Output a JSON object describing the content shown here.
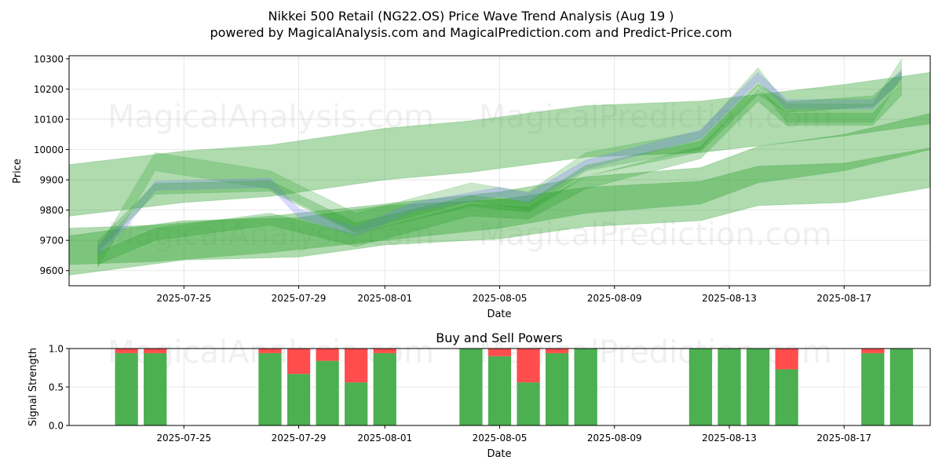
{
  "title_line1": "Nikkei 500 Retail (NG22.OS) Price Wave Trend Analysis (Aug 19 )",
  "title_line2": "powered by MagicalAnalysis.com and MagicalPrediction.com and Predict-Price.com",
  "watermarks": {
    "left": "MagicalAnalysis.com",
    "right": "MagicalPrediction.com"
  },
  "colors": {
    "band_green": "#2ca02c",
    "band_blue": "#7b7bff",
    "buy_green": "#4caf50",
    "sell_red": "#ff4d4d"
  },
  "chart_data": [
    {
      "type": "area",
      "xlabel": "Date",
      "ylabel": "Price",
      "x_range": [
        "2025-07-21",
        "2025-08-20"
      ],
      "ylim": [
        9550,
        10310
      ],
      "yticks": [
        9600,
        9700,
        9800,
        9900,
        10000,
        10100,
        10200,
        10300
      ],
      "xticks": [
        "2025-07-25",
        "2025-07-29",
        "2025-08-01",
        "2025-08-05",
        "2025-08-09",
        "2025-08-13",
        "2025-08-17"
      ],
      "grid": true,
      "series": [
        {
          "color": "green",
          "alpha": 0.38,
          "width": 170,
          "points": [
            [
              "2025-07-21",
              9865
            ],
            [
              "2025-07-25",
              9910
            ],
            [
              "2025-07-28",
              9930
            ],
            [
              "2025-08-01",
              9985
            ],
            [
              "2025-08-04",
              10010
            ],
            [
              "2025-08-08",
              10060
            ],
            [
              "2025-08-12",
              10075
            ],
            [
              "2025-08-17",
              10130
            ],
            [
              "2025-08-20",
              10170
            ]
          ]
        },
        {
          "color": "green",
          "alpha": 0.38,
          "width": 130,
          "points": [
            [
              "2025-07-21",
              9650
            ],
            [
              "2025-07-25",
              9700
            ],
            [
              "2025-07-29",
              9710
            ],
            [
              "2025-08-01",
              9750
            ],
            [
              "2025-08-05",
              9770
            ],
            [
              "2025-08-08",
              9810
            ],
            [
              "2025-08-12",
              9830
            ],
            [
              "2025-08-14",
              9880
            ],
            [
              "2025-08-17",
              9890
            ],
            [
              "2025-08-20",
              9940
            ]
          ]
        },
        {
          "color": "green",
          "alpha": 0.38,
          "width": 120,
          "points": [
            [
              "2025-07-21",
              9680
            ],
            [
              "2025-07-24",
              9690
            ],
            [
              "2025-07-28",
              9720
            ],
            [
              "2025-08-01",
              9760
            ],
            [
              "2025-08-05",
              9800
            ],
            [
              "2025-08-08",
              9850
            ],
            [
              "2025-08-12",
              9880
            ],
            [
              "2025-08-14",
              9950
            ],
            [
              "2025-08-17",
              9990
            ],
            [
              "2025-08-20",
              10060
            ]
          ]
        },
        {
          "color": "green",
          "alpha": 0.25,
          "width": 60,
          "points": [
            [
              "2025-07-22",
              9640
            ],
            [
              "2025-07-24",
              9960
            ],
            [
              "2025-07-28",
              9900
            ],
            [
              "2025-07-31",
              9760
            ],
            [
              "2025-08-04",
              9860
            ],
            [
              "2025-08-06",
              9830
            ],
            [
              "2025-08-08",
              9960
            ],
            [
              "2025-08-12",
              10030
            ],
            [
              "2025-08-14",
              10240
            ],
            [
              "2025-08-15",
              10120
            ],
            [
              "2025-08-18",
              10120
            ],
            [
              "2025-08-19",
              10270
            ]
          ]
        },
        {
          "color": "blue",
          "alpha": 0.28,
          "width": 30,
          "points": [
            [
              "2025-07-22",
              9670
            ],
            [
              "2025-07-23",
              9760
            ],
            [
              "2025-07-24",
              9880
            ],
            [
              "2025-07-28",
              9890
            ],
            [
              "2025-07-29",
              9790
            ],
            [
              "2025-07-31",
              9730
            ],
            [
              "2025-08-02",
              9810
            ],
            [
              "2025-08-05",
              9860
            ],
            [
              "2025-08-06",
              9840
            ],
            [
              "2025-08-08",
              9950
            ],
            [
              "2025-08-12",
              10050
            ],
            [
              "2025-08-14",
              10240
            ],
            [
              "2025-08-15",
              10150
            ],
            [
              "2025-08-18",
              10150
            ],
            [
              "2025-08-19",
              10250
            ]
          ]
        },
        {
          "color": "green",
          "alpha": 0.3,
          "width": 40,
          "points": [
            [
              "2025-07-22",
              9640
            ],
            [
              "2025-07-24",
              9720
            ],
            [
              "2025-07-28",
              9770
            ],
            [
              "2025-07-31",
              9700
            ],
            [
              "2025-08-04",
              9800
            ],
            [
              "2025-08-06",
              9790
            ],
            [
              "2025-08-08",
              9890
            ],
            [
              "2025-08-12",
              9990
            ],
            [
              "2025-08-14",
              10180
            ],
            [
              "2025-08-15",
              10100
            ],
            [
              "2025-08-18",
              10100
            ],
            [
              "2025-08-19",
              10200
            ]
          ]
        },
        {
          "color": "green",
          "alpha": 0.3,
          "width": 35,
          "points": [
            [
              "2025-07-22",
              9680
            ],
            [
              "2025-07-24",
              9870
            ],
            [
              "2025-07-28",
              9880
            ],
            [
              "2025-07-31",
              9740
            ],
            [
              "2025-08-04",
              9830
            ],
            [
              "2025-08-06",
              9810
            ],
            [
              "2025-08-08",
              9930
            ],
            [
              "2025-08-12",
              10010
            ],
            [
              "2025-08-14",
              10200
            ],
            [
              "2025-08-15",
              10140
            ],
            [
              "2025-08-18",
              10160
            ],
            [
              "2025-08-19",
              10240
            ]
          ]
        }
      ]
    },
    {
      "type": "bar",
      "title": "Buy and Sell Powers",
      "xlabel": "Date",
      "ylabel": "Signal Strength",
      "ylim": [
        0,
        1
      ],
      "yticks": [
        0.0,
        0.5,
        1.0
      ],
      "ytick_labels": [
        "0.0",
        "0.5",
        "1.0"
      ],
      "x_range": [
        "2025-07-21",
        "2025-08-20"
      ],
      "xticks": [
        "2025-07-25",
        "2025-07-29",
        "2025-08-01",
        "2025-08-05",
        "2025-08-09",
        "2025-08-13",
        "2025-08-17"
      ],
      "dates": [
        "2025-07-23",
        "2025-07-24",
        "2025-07-28",
        "2025-07-29",
        "2025-07-30",
        "2025-07-31",
        "2025-08-01",
        "2025-08-04",
        "2025-08-05",
        "2025-08-06",
        "2025-08-07",
        "2025-08-08",
        "2025-08-12",
        "2025-08-13",
        "2025-08-14",
        "2025-08-15",
        "2025-08-18",
        "2025-08-19"
      ],
      "buy": [
        0.94,
        0.94,
        0.94,
        0.67,
        0.84,
        0.56,
        0.94,
        1.0,
        0.9,
        0.56,
        0.94,
        1.0,
        1.0,
        1.0,
        1.0,
        0.73,
        0.94,
        1.0
      ],
      "sell": [
        0.06,
        0.06,
        0.06,
        0.33,
        0.16,
        0.44,
        0.06,
        0.0,
        0.1,
        0.44,
        0.06,
        0.0,
        0.0,
        0.0,
        0.0,
        0.27,
        0.06,
        0.0
      ]
    }
  ]
}
